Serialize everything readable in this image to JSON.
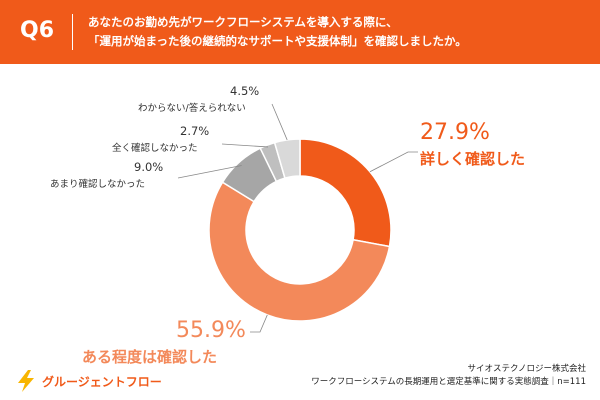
{
  "header": {
    "q_label": "Q6",
    "line1": "あなたのお勤め先がワークフローシステムを導入する際に、",
    "line2": "「運用が始まった後の継続的なサポートや支援体制」を確認しましたか。"
  },
  "chart_data": {
    "type": "pie",
    "donut": true,
    "slices": [
      {
        "label": "詳しく確認した",
        "value": 27.9,
        "pct_text": "27.9%",
        "color": "#f05a1a"
      },
      {
        "label": "ある程度は確認した",
        "value": 55.9,
        "pct_text": "55.9%",
        "color": "#f3895a"
      },
      {
        "label": "あまり確認しなかった",
        "value": 9.0,
        "pct_text": "9.0%",
        "color": "#a6a6a6"
      },
      {
        "label": "全く確認しなかった",
        "value": 2.7,
        "pct_text": "2.7%",
        "color": "#bfbfbf"
      },
      {
        "label": "わからない/答えられない",
        "value": 4.5,
        "pct_text": "4.5%",
        "color": "#d9d9d9"
      }
    ]
  },
  "footer": {
    "company": "サイオステクノロジー株式会社",
    "survey": "ワークフローシステムの長期運用と選定基準に関する実態調査｜n=111"
  },
  "logo": {
    "text": "グルージェントフロー",
    "icon": "lightning-bolt-logo-icon",
    "color": "#f8b500"
  }
}
